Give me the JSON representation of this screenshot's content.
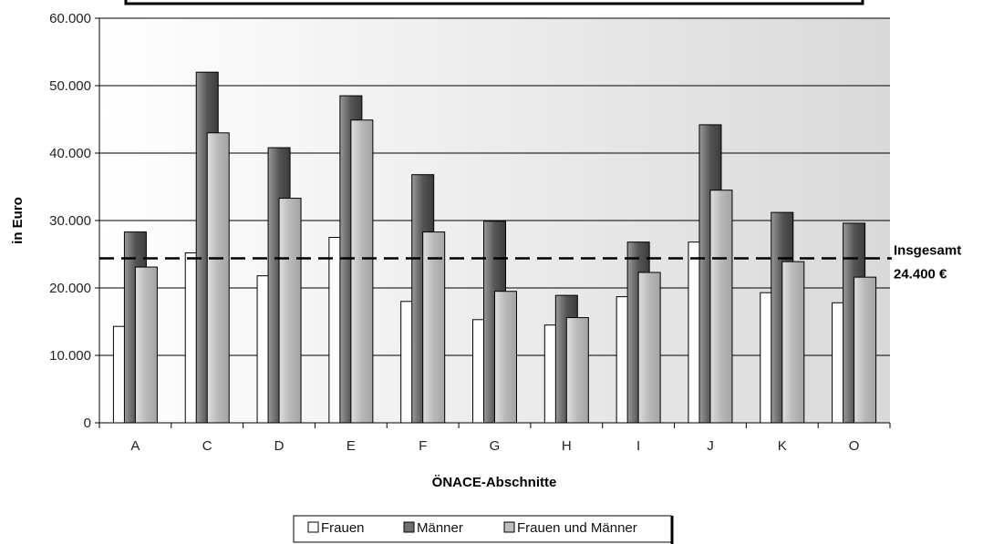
{
  "chart_data": {
    "type": "bar",
    "title": "",
    "xlabel": "ÖNACE-Abschnitte",
    "ylabel": "in Euro",
    "ylim": [
      0,
      60000
    ],
    "yticks": [
      0,
      10000,
      20000,
      30000,
      40000,
      50000,
      60000
    ],
    "ytick_labels": [
      "0",
      "10.000",
      "20.000",
      "30.000",
      "40.000",
      "50.000",
      "60.000"
    ],
    "grid": "horizontal",
    "legend_position": "bottom",
    "categories": [
      "A",
      "C",
      "D",
      "E",
      "F",
      "G",
      "H",
      "I",
      "J",
      "K",
      "O"
    ],
    "series": [
      {
        "name": "Frauen",
        "color": "#ffffff",
        "values": [
          14300,
          25200,
          21800,
          27500,
          18000,
          15300,
          14500,
          18700,
          26800,
          19300,
          17800
        ]
      },
      {
        "name": "Männer",
        "color": "#6e6e6e",
        "values": [
          28300,
          52000,
          40800,
          48500,
          36800,
          29900,
          18900,
          26800,
          44200,
          31200,
          29600
        ]
      },
      {
        "name": "Frauen und Männer",
        "color": "#bdbdbd",
        "values": [
          23100,
          43000,
          33300,
          44900,
          28300,
          19500,
          15600,
          22300,
          34500,
          23900,
          21600
        ]
      }
    ],
    "reference_line": {
      "value": 24400,
      "label_line1": "Insgesamt",
      "label_line2": "24.400 €",
      "style": "dashed"
    }
  }
}
